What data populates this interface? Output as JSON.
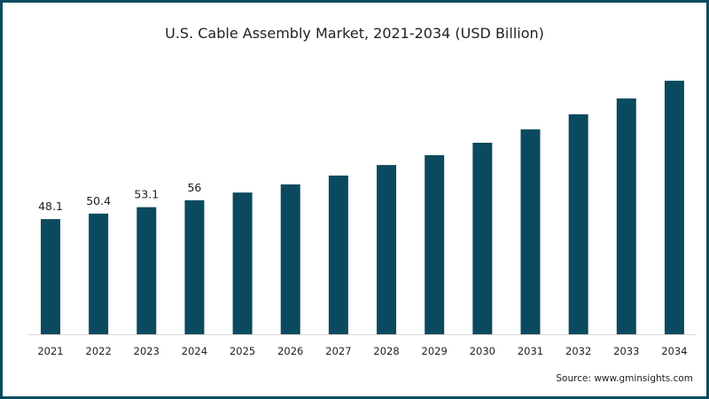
{
  "chart_data": {
    "type": "bar",
    "title": "U.S. Cable Assembly Market, 2021-2034 (USD Billion)",
    "xlabel": "",
    "ylabel": "",
    "categories": [
      "2021",
      "2022",
      "2023",
      "2024",
      "2025",
      "2026",
      "2027",
      "2028",
      "2029",
      "2030",
      "2031",
      "2032",
      "2033",
      "2034"
    ],
    "values": [
      48.1,
      50.4,
      53.1,
      56,
      59.2,
      62.6,
      66.3,
      70.7,
      74.8,
      80.0,
      85.6,
      91.9,
      98.5,
      105.9
    ],
    "data_labels": [
      "48.1",
      "50.4",
      "53.1",
      "56",
      null,
      null,
      null,
      null,
      null,
      null,
      null,
      null,
      null,
      null
    ],
    "ylim": [
      0,
      110
    ],
    "grid": false,
    "bar_color": "#0b4a5e",
    "source": "Source: www.gminsights.com"
  }
}
